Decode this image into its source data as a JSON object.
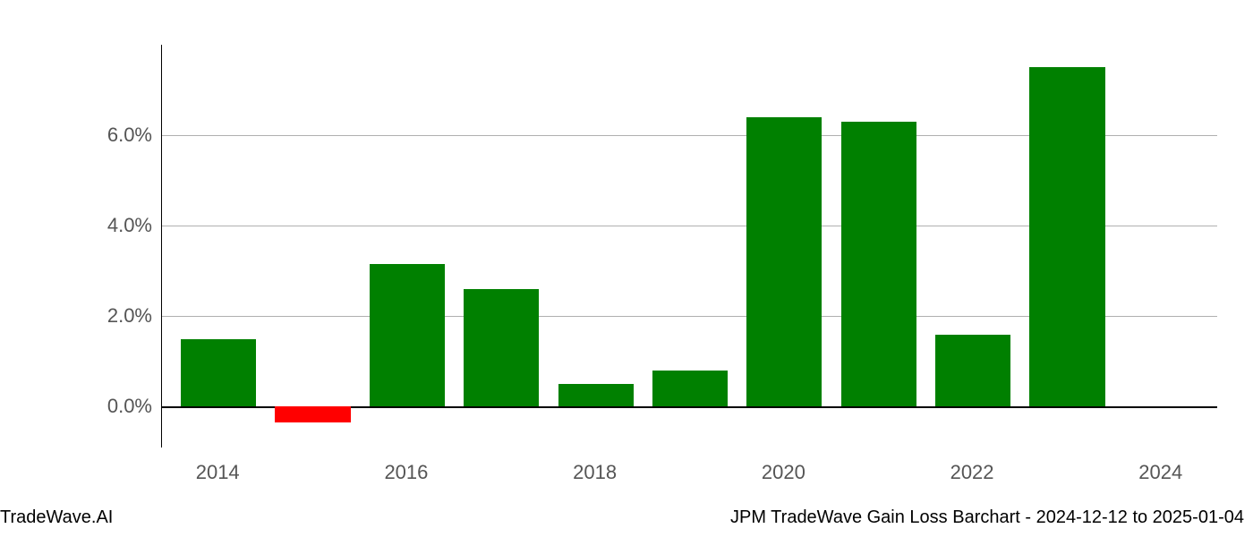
{
  "chart": {
    "type": "bar",
    "years": [
      2014,
      2015,
      2016,
      2017,
      2018,
      2019,
      2020,
      2021,
      2022,
      2023,
      2024
    ],
    "values": [
      1.5,
      -0.35,
      3.15,
      2.6,
      0.5,
      0.8,
      6.4,
      6.3,
      1.6,
      7.5,
      0
    ],
    "colors": [
      "#008000",
      "#ff0000",
      "#008000",
      "#008000",
      "#008000",
      "#008000",
      "#008000",
      "#008000",
      "#008000",
      "#008000",
      "#008000"
    ],
    "ylim_min": -0.9,
    "ylim_max": 8.0,
    "ytick_values": [
      0.0,
      2.0,
      4.0,
      6.0
    ],
    "ytick_labels": [
      "0.0%",
      "2.0%",
      "4.0%",
      "6.0%"
    ],
    "xtick_values": [
      2014,
      2016,
      2018,
      2020,
      2022,
      2024
    ],
    "xtick_labels": [
      "2014",
      "2016",
      "2018",
      "2020",
      "2022",
      "2024"
    ],
    "x_domain_min": 2013.4,
    "x_domain_max": 2024.6,
    "bar_width_years": 0.8,
    "grid_color": "#b0b0b0",
    "axis_color": "#000000",
    "background_color": "#ffffff",
    "tick_label_color": "#555555",
    "tick_label_fontsize": 22,
    "footer_fontsize": 20
  },
  "footer": {
    "left": "TradeWave.AI",
    "right": "JPM TradeWave Gain Loss Barchart - 2024-12-12 to 2025-01-04"
  }
}
